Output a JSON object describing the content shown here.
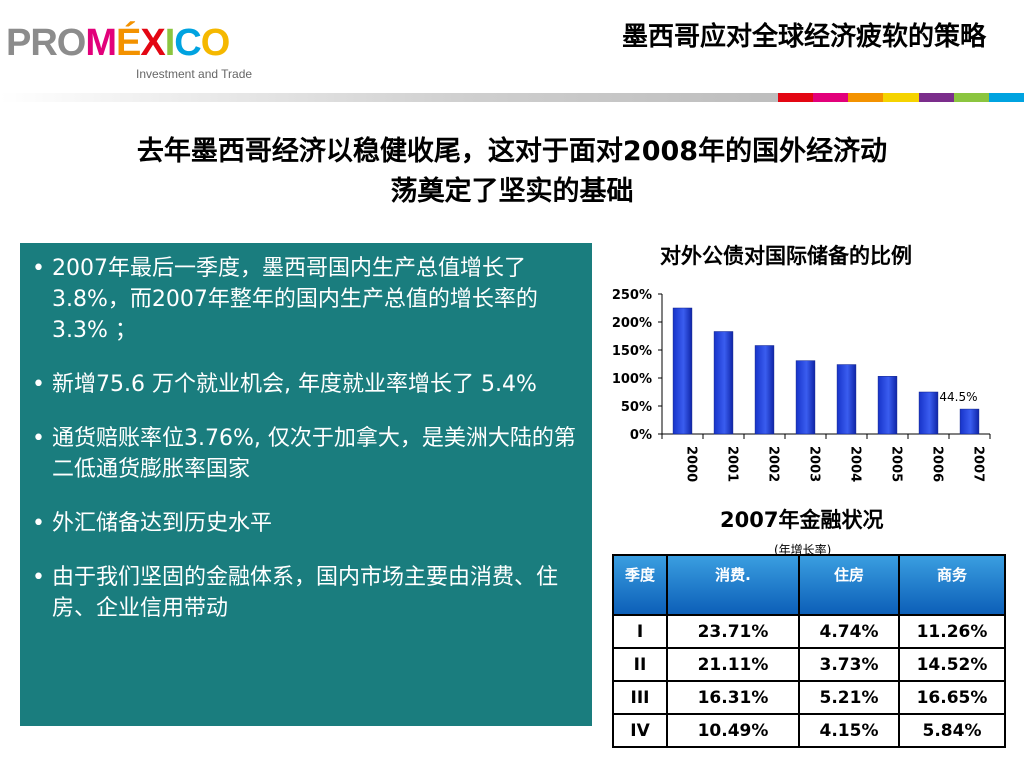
{
  "logo": {
    "pro": "PRO",
    "m": "M",
    "e": "É",
    "x": "X",
    "i": "I",
    "c": "C",
    "o": "O",
    "tagline": "Investment and Trade"
  },
  "header": {
    "title": "墨西哥应对全球经济疲软的策略"
  },
  "band_colors": [
    "#e30613",
    "#e2007a",
    "#f39200",
    "#f5d300",
    "#7b2d8b",
    "#8bc53f",
    "#00a3e0"
  ],
  "main_heading": {
    "line1": "去年墨西哥经济以稳健收尾，这对于面对2008年的国外经济动",
    "line2": "荡奠定了坚实的基础"
  },
  "bullets": [
    {
      "dot": "•",
      "text": "2007年最后一季度，墨西哥国内生产总值增长了3.8%，而2007年整年的国内生产总值的增长率的3.3% ；"
    },
    {
      "dot": "•",
      "text": "新增75.6 万个就业机会, 年度就业率增长了 5.4%"
    },
    {
      "dot": "•",
      "text": "通货赔账率位3.76%, 仅次于加拿大，是美洲大陆的第二低通货膨胀率国家"
    },
    {
      "dot": "•",
      "text": "外汇储备达到历史水平"
    },
    {
      "dot": "•",
      "text": "由于我们坚固的金融体系，国内市场主要由消费、住房、企业信用带动"
    }
  ],
  "chart_data": {
    "type": "bar",
    "title": "对外公债对国际储备的比例",
    "categories": [
      "2000",
      "2001",
      "2002",
      "2003",
      "2004",
      "2005",
      "2006",
      "2007"
    ],
    "values": [
      225,
      183,
      158,
      131,
      124,
      103,
      75,
      44.5
    ],
    "ylim": [
      0,
      250
    ],
    "yticks": [
      "0%",
      "50%",
      "100%",
      "150%",
      "200%",
      "250%"
    ],
    "ytick_values": [
      0,
      50,
      100,
      150,
      200,
      250
    ],
    "data_labels": [
      {
        "index": 7,
        "text": "44.5%"
      }
    ],
    "bar_color": "#1f3fd6",
    "xlabel": "",
    "ylabel": "",
    "legend": "none",
    "grid": false
  },
  "table": {
    "title": "2007年金融状况",
    "subtitle": "(年增长率)",
    "headers": [
      "季度",
      "消费.",
      "住房",
      "商务"
    ],
    "rows": [
      [
        "I",
        "23.71%",
        "4.74%",
        "11.26%"
      ],
      [
        "II",
        "21.11%",
        "3.73%",
        "14.52%"
      ],
      [
        "III",
        "16.31%",
        "5.21%",
        "16.65%"
      ],
      [
        "IV",
        "10.49%",
        "4.15%",
        "5.84%"
      ]
    ]
  }
}
